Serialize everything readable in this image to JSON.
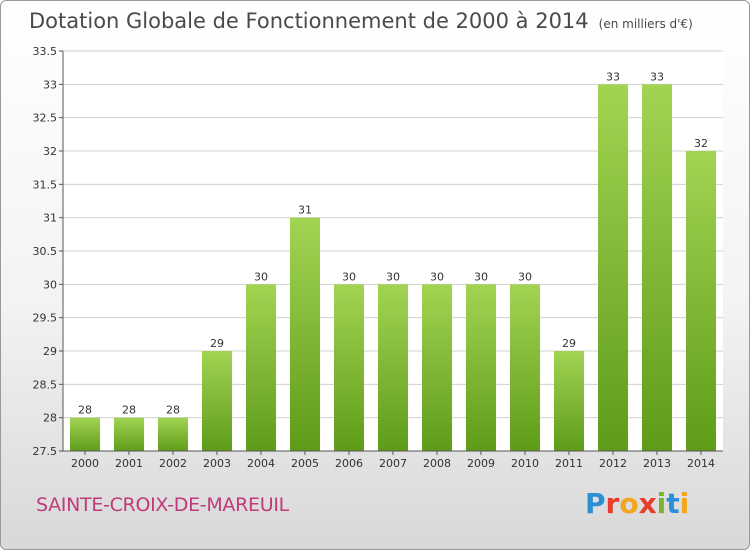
{
  "title": "Dotation Globale de Fonctionnement de 2000 à 2014",
  "unit_label": "(en milliers d'€)",
  "commune": "SAINTE-CROIX-DE-MAREUIL",
  "logo": {
    "text": "Proxiti",
    "letters": [
      {
        "ch": "P",
        "color": "#2b8fd6"
      },
      {
        "ch": "r",
        "color": "#e53e2c"
      },
      {
        "ch": "o",
        "color": "#f2a51d"
      },
      {
        "ch": "x",
        "color": "#e53e2c"
      },
      {
        "ch": "i",
        "color": "#7ab32e"
      },
      {
        "ch": "t",
        "color": "#2b8fd6"
      },
      {
        "ch": "i",
        "color": "#f2a51d"
      }
    ]
  },
  "colors": {
    "bar_top": "#a2d452",
    "bar_bottom": "#5e9c18",
    "grid": "#d0d0d0",
    "axis": "#555555",
    "title": "#4a4a4a",
    "commune": "#c0397a"
  },
  "chart_data": {
    "type": "bar",
    "title": "Dotation Globale de Fonctionnement de 2000 à 2014",
    "subtitle": "(en milliers d'€)",
    "categories": [
      "2000",
      "2001",
      "2002",
      "2003",
      "2004",
      "2005",
      "2006",
      "2007",
      "2008",
      "2009",
      "2010",
      "2011",
      "2012",
      "2013",
      "2014"
    ],
    "values": [
      28,
      28,
      28,
      29,
      30,
      31,
      30,
      30,
      30,
      30,
      30,
      29,
      33,
      33,
      32
    ],
    "data_labels": [
      "28",
      "28",
      "28",
      "29",
      "30",
      "31",
      "30",
      "30",
      "30",
      "30",
      "30",
      "29",
      "33",
      "33",
      "32"
    ],
    "ylim": [
      27.5,
      33.5
    ],
    "yticks": [
      "27.5",
      "28",
      "28.5",
      "29",
      "29.5",
      "30",
      "30.5",
      "31",
      "31.5",
      "32",
      "32.5",
      "33",
      "33.5"
    ],
    "grid": true,
    "xlabel": "",
    "ylabel": ""
  }
}
